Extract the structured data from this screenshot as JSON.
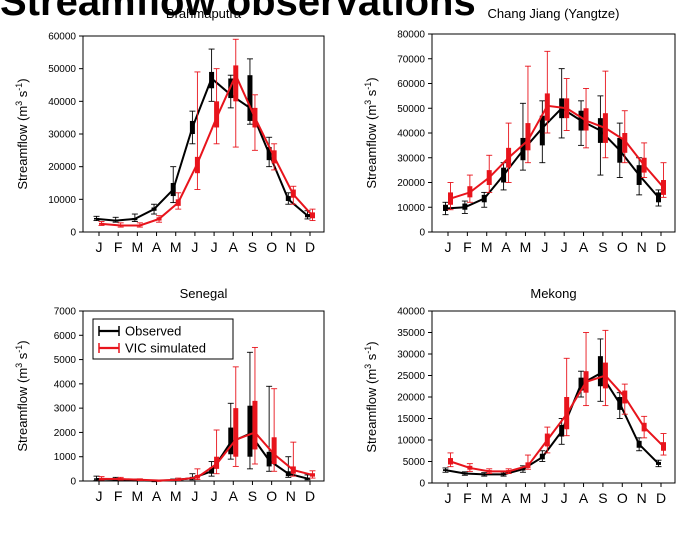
{
  "slide": {
    "title": "Streamflow observations"
  },
  "colors": {
    "observed": "#000000",
    "simulated": "#e8141c",
    "simulated_errorbar": "#e8141c"
  },
  "chart_data": [
    {
      "type": "line",
      "title": "Brahmaputra",
      "ylabel": "Streamflow (m3 s-1)",
      "categories": [
        "J",
        "F",
        "M",
        "A",
        "M",
        "J",
        "J",
        "A",
        "S",
        "O",
        "N",
        "D"
      ],
      "ylim": [
        0,
        60000
      ],
      "yticks": [
        0,
        10000,
        20000,
        30000,
        40000,
        50000,
        60000
      ],
      "grid": false,
      "legend": false,
      "series": [
        {
          "name": "Observed",
          "values": [
            4000,
            3500,
            4000,
            7000,
            13000,
            32000,
            47000,
            42000,
            38000,
            24000,
            10000,
            5000
          ],
          "err_low": [
            3500,
            3000,
            3200,
            5500,
            9000,
            27000,
            40000,
            38000,
            33000,
            20000,
            8500,
            4000
          ],
          "err_high": [
            4800,
            4500,
            5500,
            8500,
            20000,
            37000,
            56000,
            48000,
            53000,
            29000,
            12000,
            6500
          ],
          "box_low": [
            3800,
            3200,
            3600,
            6500,
            11000,
            30000,
            44000,
            41000,
            34000,
            22000,
            9500,
            4500
          ],
          "box_high": [
            4300,
            3800,
            4300,
            7500,
            15000,
            34000,
            49000,
            47000,
            48000,
            26000,
            11000,
            5500
          ]
        },
        {
          "name": "VIC simulated",
          "values": [
            2500,
            2000,
            2000,
            4000,
            9000,
            21000,
            35000,
            48000,
            35000,
            23000,
            11500,
            5000
          ],
          "err_low": [
            2000,
            1500,
            1500,
            3000,
            7000,
            13000,
            27000,
            26000,
            25000,
            19000,
            8500,
            3500
          ],
          "err_high": [
            3200,
            2800,
            2800,
            5000,
            12000,
            49000,
            50000,
            59000,
            42000,
            27000,
            14000,
            7000
          ],
          "box_low": [
            2200,
            1800,
            1800,
            3500,
            8000,
            18000,
            32000,
            40000,
            32000,
            21000,
            10500,
            4200
          ],
          "box_high": [
            2800,
            2300,
            2300,
            4500,
            10000,
            23000,
            40000,
            51000,
            38000,
            25000,
            13000,
            6000
          ]
        }
      ]
    },
    {
      "type": "line",
      "title": "Chang Jiang (Yangtze)",
      "ylabel": "Streamflow (m3 s-1)",
      "categories": [
        "J",
        "F",
        "M",
        "A",
        "M",
        "J",
        "J",
        "A",
        "S",
        "O",
        "N",
        "D"
      ],
      "ylim": [
        0,
        80000
      ],
      "yticks": [
        0,
        10000,
        20000,
        30000,
        40000,
        50000,
        60000,
        70000,
        80000
      ],
      "grid": false,
      "legend": false,
      "series": [
        {
          "name": "Observed",
          "values": [
            9500,
            10000,
            13500,
            23000,
            33000,
            42000,
            50000,
            45000,
            41000,
            33000,
            23000,
            14000
          ],
          "err_low": [
            7000,
            7500,
            10000,
            17000,
            25000,
            28000,
            38000,
            35000,
            23000,
            22000,
            15000,
            10500
          ],
          "err_high": [
            12000,
            12500,
            16000,
            28000,
            52000,
            53000,
            66000,
            53000,
            55000,
            44000,
            30000,
            17000
          ],
          "box_low": [
            8500,
            9000,
            12000,
            20000,
            29000,
            35000,
            46000,
            41000,
            36000,
            28000,
            19000,
            12000
          ],
          "box_high": [
            11000,
            11500,
            15000,
            26000,
            38000,
            47000,
            54000,
            49000,
            46000,
            38000,
            27000,
            16000
          ]
        },
        {
          "name": "VIC simulated",
          "values": [
            13500,
            16000,
            22000,
            30000,
            37000,
            51000,
            50000,
            45000,
            42000,
            37000,
            27000,
            18000
          ],
          "err_low": [
            9000,
            12000,
            16000,
            20000,
            28000,
            40000,
            41000,
            34000,
            30000,
            28000,
            22000,
            14000
          ],
          "err_high": [
            20000,
            23000,
            31000,
            44000,
            67000,
            73000,
            62000,
            58000,
            65000,
            49000,
            36000,
            28000
          ],
          "box_low": [
            11000,
            14000,
            19000,
            26000,
            33000,
            45000,
            46000,
            41000,
            36000,
            32000,
            24000,
            15000
          ],
          "box_high": [
            16000,
            18500,
            25000,
            34000,
            44000,
            56000,
            54000,
            50000,
            48000,
            40000,
            30000,
            21000
          ]
        }
      ]
    },
    {
      "type": "line",
      "title": "Senegal",
      "ylabel": "Streamflow (m3 s-1)",
      "categories": [
        "J",
        "F",
        "M",
        "A",
        "M",
        "J",
        "J",
        "A",
        "S",
        "O",
        "N",
        "D"
      ],
      "ylim": [
        0,
        7000
      ],
      "yticks": [
        0,
        1000,
        2000,
        3000,
        4000,
        5000,
        6000,
        7000
      ],
      "grid": false,
      "legend": true,
      "legend_position": "top-left",
      "series": [
        {
          "name": "Observed",
          "values": [
            80,
            60,
            30,
            10,
            30,
            120,
            400,
            1600,
            1950,
            850,
            300,
            100
          ],
          "err_low": [
            20,
            20,
            10,
            5,
            10,
            50,
            200,
            900,
            500,
            400,
            150,
            50
          ],
          "err_high": [
            200,
            150,
            80,
            30,
            80,
            300,
            800,
            3200,
            5300,
            3900,
            1000,
            250
          ],
          "box_low": [
            50,
            40,
            20,
            8,
            20,
            80,
            300,
            1100,
            1000,
            600,
            200,
            70
          ],
          "box_high": [
            110,
            90,
            40,
            15,
            40,
            170,
            550,
            2200,
            3100,
            1200,
            400,
            140
          ]
        },
        {
          "name": "VIC simulated",
          "values": [
            90,
            80,
            50,
            20,
            50,
            150,
            700,
            1700,
            2000,
            1100,
            450,
            250
          ],
          "err_low": [
            40,
            40,
            20,
            5,
            20,
            60,
            300,
            600,
            700,
            400,
            200,
            120
          ],
          "err_high": [
            180,
            150,
            90,
            40,
            120,
            500,
            2100,
            4700,
            5500,
            3800,
            1600,
            420
          ],
          "box_low": [
            60,
            60,
            30,
            10,
            30,
            100,
            500,
            1000,
            1300,
            700,
            300,
            180
          ],
          "box_high": [
            130,
            110,
            70,
            30,
            80,
            250,
            1000,
            3000,
            3300,
            1800,
            600,
            320
          ]
        }
      ]
    },
    {
      "type": "line",
      "title": "Mekong",
      "ylabel": "Streamflow (m3 s-1)",
      "categories": [
        "J",
        "F",
        "M",
        "A",
        "M",
        "J",
        "J",
        "A",
        "S",
        "O",
        "N",
        "D"
      ],
      "ylim": [
        0,
        40000
      ],
      "yticks": [
        0,
        5000,
        10000,
        15000,
        20000,
        25000,
        30000,
        35000,
        40000
      ],
      "grid": false,
      "legend": false,
      "series": [
        {
          "name": "Observed",
          "values": [
            3000,
            2200,
            2000,
            2000,
            3200,
            6000,
            12000,
            23000,
            25500,
            18500,
            9000,
            4500
          ],
          "err_low": [
            2500,
            1800,
            1600,
            1600,
            2500,
            5000,
            9000,
            20000,
            19000,
            15000,
            7500,
            3800
          ],
          "err_high": [
            3500,
            2600,
            2400,
            2500,
            4000,
            7500,
            15000,
            26000,
            33500,
            21000,
            10500,
            5300
          ],
          "box_low": [
            2800,
            2000,
            1800,
            1800,
            2900,
            5500,
            10800,
            21500,
            22500,
            17000,
            8200,
            4200
          ],
          "box_high": [
            3200,
            2400,
            2200,
            2300,
            3600,
            6800,
            13500,
            24500,
            29500,
            20000,
            9800,
            4900
          ]
        },
        {
          "name": "VIC simulated",
          "values": [
            5000,
            3500,
            2700,
            2700,
            4000,
            10000,
            16000,
            23500,
            25000,
            20000,
            13000,
            8500
          ],
          "err_low": [
            3800,
            2700,
            2200,
            2200,
            3200,
            7000,
            11000,
            18000,
            18000,
            16000,
            10500,
            6500
          ],
          "err_high": [
            7000,
            4500,
            3300,
            3300,
            6500,
            13000,
            29000,
            35000,
            35500,
            23000,
            15500,
            11500
          ],
          "box_low": [
            4300,
            3100,
            2400,
            2400,
            3500,
            8500,
            12500,
            21000,
            22000,
            18500,
            12000,
            7500
          ],
          "box_high": [
            5800,
            4000,
            3000,
            3000,
            4800,
            11500,
            20000,
            26000,
            28000,
            21500,
            14000,
            9500
          ]
        }
      ]
    }
  ]
}
